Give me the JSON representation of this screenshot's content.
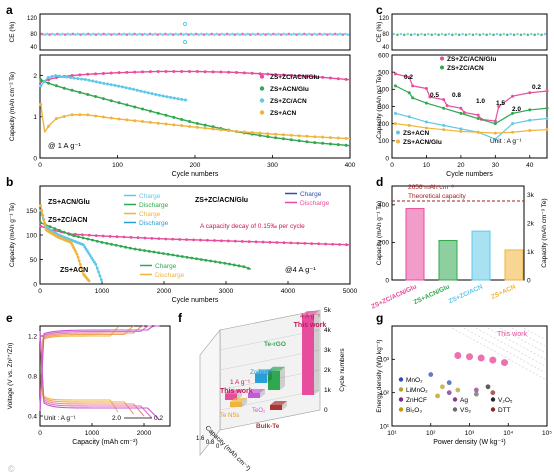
{
  "chart_data": [
    {
      "panel": "a",
      "type": "line",
      "ce_ylabel": "CE (%)",
      "ce_ticks": [
        "120",
        "80",
        "40"
      ],
      "ylabel": "Capacity (mAh cm⁻² Te)",
      "xlabel": "Cycle numbers",
      "xlim": [
        0,
        400
      ],
      "ylim": [
        0,
        2.5
      ],
      "x_ticks": [
        "0",
        "100",
        "200",
        "300",
        "400"
      ],
      "y_ticks": [
        "0",
        "1",
        "2"
      ],
      "condition": "@ 1 A g⁻¹",
      "series": [
        {
          "name": "ZS+ZC/ACN/Glu",
          "color": "#e84c9c",
          "x": [
            1,
            20,
            40,
            60,
            80,
            100,
            150,
            200,
            250,
            300,
            350,
            400
          ],
          "y": [
            1.85,
            1.95,
            2.0,
            2.03,
            2.05,
            2.07,
            2.1,
            2.1,
            2.08,
            2.03,
            1.98,
            1.9
          ]
        },
        {
          "name": "ZS+ACN/Glu",
          "color": "#2fa84f",
          "x": [
            1,
            10,
            30,
            50,
            80,
            120,
            160,
            200,
            250,
            300,
            350,
            400
          ],
          "y": [
            1.9,
            1.82,
            1.7,
            1.6,
            1.45,
            1.25,
            1.05,
            0.85,
            0.65,
            0.5,
            0.38,
            0.3
          ]
        },
        {
          "name": "ZS+ZC/ACN",
          "color": "#5fc8e8",
          "x": [
            1,
            10,
            20,
            40,
            60,
            80,
            100,
            120,
            140,
            160,
            180,
            190
          ],
          "y": [
            1.75,
            1.95,
            2.0,
            1.95,
            1.9,
            1.82,
            1.75,
            1.67,
            1.58,
            1.5,
            1.43,
            1.4
          ]
        },
        {
          "name": "ZS+ACN",
          "color": "#f0b43c",
          "x": [
            1,
            5,
            10,
            20,
            40,
            60,
            100,
            150,
            200,
            250,
            300,
            350,
            400
          ],
          "y": [
            1.3,
            0.6,
            0.75,
            0.95,
            1.05,
            1.05,
            0.95,
            0.85,
            0.75,
            0.65,
            0.58,
            0.52,
            0.47
          ]
        }
      ]
    },
    {
      "panel": "b",
      "type": "line",
      "ylabel": "Capacity (mAh g⁻¹ Te)",
      "xlabel": "Cycle numbers",
      "xlim": [
        0,
        5000
      ],
      "ylim": [
        0,
        200
      ],
      "x_ticks": [
        "0",
        "1000",
        "2000",
        "3000",
        "4000",
        "5000"
      ],
      "y_ticks": [
        "0",
        "50",
        "100",
        "150"
      ],
      "condition": "@4 A g⁻¹",
      "note": "A capacity decay of 0.15‰ per cycle",
      "labels": [
        "ZS+ACN/Glu",
        "ZS+ZC/ACN",
        "ZS+ACN",
        "ZS+ZC/ACN/Glu"
      ],
      "legend_left": [
        {
          "name": "Charge",
          "color": "#5fc8e8"
        },
        {
          "name": "Discharge",
          "color": "#2fa84f"
        },
        {
          "name": "Charge",
          "color": "#f0b43c"
        },
        {
          "name": "Discharge",
          "color": "#2a9fd6"
        }
      ],
      "legend_right": [
        {
          "name": "Charge",
          "color": "#2f4eb5"
        },
        {
          "name": "Discharge",
          "color": "#e84c9c"
        }
      ],
      "legend_mid": [
        {
          "name": "Charge",
          "color": "#2fa84f"
        },
        {
          "name": "Discharge",
          "color": "#f0b43c"
        }
      ],
      "series": [
        {
          "name": "ZS+ZC/ACN/Glu",
          "color": "#e84c9c",
          "x": [
            10,
            200,
            500,
            1000,
            2000,
            3000,
            4000,
            5000
          ],
          "y": [
            118,
            110,
            102,
            98,
            92,
            88,
            84,
            80
          ]
        },
        {
          "name": "ZS+ACN/Glu",
          "color": "#2fa84f",
          "x": [
            10,
            200,
            500,
            1000,
            1500,
            2000,
            2500,
            3000,
            3300,
            3400
          ],
          "y": [
            125,
            115,
            100,
            85,
            72,
            62,
            52,
            42,
            35,
            30
          ]
        },
        {
          "name": "ZS+ZC/ACN",
          "color": "#5fc8e8",
          "x": [
            10,
            100,
            300,
            500,
            700,
            900,
            1000
          ],
          "y": [
            150,
            115,
            100,
            90,
            80,
            40,
            5
          ]
        },
        {
          "name": "ZS+ACN",
          "color": "#f0b43c",
          "x": [
            10,
            100,
            300,
            500,
            600,
            700,
            800
          ],
          "y": [
            160,
            110,
            95,
            85,
            60,
            20,
            5
          ]
        }
      ]
    },
    {
      "panel": "c",
      "type": "line",
      "ce_ylabel": "CE (%)",
      "ce_ticks": [
        "120",
        "80",
        "40"
      ],
      "ylabel": "Capacity (mAh g⁻¹ Te)",
      "xlabel": "Cycle numbers",
      "xlim": [
        0,
        45
      ],
      "ylim": [
        0,
        600
      ],
      "x_ticks": [
        "0",
        "10",
        "20",
        "30",
        "40"
      ],
      "y_ticks": [
        "0",
        "100",
        "200",
        "300",
        "400",
        "500",
        "600"
      ],
      "unit": "Unit : A g⁻¹",
      "rate_labels": [
        "0.2",
        "0.5",
        "0.8",
        "1.0",
        "1.5",
        "2.0",
        "0.2"
      ],
      "series": [
        {
          "name": "ZS+ZC/ACN/Glu",
          "color": "#e84c9c",
          "x": [
            1,
            5,
            6,
            10,
            11,
            15,
            16,
            20,
            21,
            25,
            26,
            30,
            31,
            35,
            40,
            45
          ],
          "y": [
            490,
            470,
            420,
            405,
            355,
            340,
            305,
            290,
            265,
            250,
            225,
            215,
            300,
            360,
            380,
            390
          ]
        },
        {
          "name": "ZS+ZC/ACN",
          "color": "#2fa84f",
          "x": [
            1,
            5,
            6,
            10,
            15,
            20,
            25,
            30,
            35,
            40,
            45
          ],
          "y": [
            420,
            380,
            350,
            320,
            290,
            260,
            230,
            200,
            260,
            280,
            290
          ]
        },
        {
          "name": "ZS+ACN",
          "color": "#5fc8e8",
          "x": [
            1,
            5,
            10,
            15,
            20,
            25,
            30,
            35,
            40,
            45
          ],
          "y": [
            260,
            240,
            210,
            190,
            170,
            150,
            110,
            200,
            220,
            230
          ]
        },
        {
          "name": "ZS+ACN/Glu",
          "color": "#f0b43c",
          "x": [
            1,
            5,
            10,
            15,
            20,
            25,
            30,
            35,
            40,
            45
          ],
          "y": [
            200,
            190,
            175,
            165,
            155,
            150,
            145,
            150,
            160,
            165
          ]
        }
      ]
    },
    {
      "panel": "d",
      "type": "bar",
      "ylabel": "Capacity (mAh g⁻¹ Te)",
      "y2label": "Capacity (mAh cm⁻³ Te)",
      "ylim": [
        0,
        500
      ],
      "y_ticks": [
        "0",
        "200",
        "400"
      ],
      "y2_ticks": [
        "0",
        "1k",
        "2k",
        "3k"
      ],
      "annotation": "2656 mAh cm⁻³",
      "reference_line": {
        "label": "Theoretical capacity",
        "value": 420
      },
      "categories": [
        "ZS+ZC/ACN/Glu",
        "ZS+ACN/Glu",
        "ZS+ZC/ACN",
        "ZS+ACN"
      ],
      "colors": [
        "#e84c9c",
        "#2fa84f",
        "#5fc8e8",
        "#f0b43c"
      ],
      "values": [
        380,
        210,
        260,
        160
      ]
    },
    {
      "panel": "e",
      "type": "line",
      "ylabel": "Voltage (V vs. Zn²⁺/Zn)",
      "xlabel": "Capacity (mAh cm⁻²)",
      "xlim": [
        0,
        2500
      ],
      "ylim": [
        0.3,
        1.3
      ],
      "x_ticks": [
        "0",
        "1000",
        "2000"
      ],
      "y_ticks": [
        "0.4",
        "0.8",
        "1.2"
      ],
      "unit": "Unit : A g⁻¹",
      "rate_range": [
        "2.0",
        "0.2"
      ],
      "curve_endpoints": [
        1500,
        1800,
        2000,
        2150,
        2300
      ]
    },
    {
      "panel": "f",
      "type": "bar",
      "zlabel": "Cycle numbers",
      "xlabel": "Capacity (mAh cm⁻²)",
      "z_ticks": [
        "0",
        "1k",
        "2k",
        "3k",
        "4k",
        "5k"
      ],
      "x_ticks": [
        "1.6",
        "0.8",
        "0"
      ],
      "bars": [
        {
          "label": "This work",
          "condition": "4 A g⁻¹",
          "value": 5000,
          "color": "#e84c9c"
        },
        {
          "label": "This work",
          "condition": "1 A g⁻¹",
          "value": 400,
          "color": "#e84c9c"
        },
        {
          "label": "Te-rGO",
          "value": 1200,
          "color": "#2fa84f"
        },
        {
          "label": "ZnTe@C",
          "value": 600,
          "color": "#2a9fd6"
        },
        {
          "label": "Te NSs",
          "value": 300,
          "color": "#f0b43c"
        },
        {
          "label": "TeO₂",
          "value": 200,
          "color": "#c35ad6"
        },
        {
          "label": "Bulk-Te",
          "value": 150,
          "color": "#a33"
        }
      ]
    },
    {
      "panel": "g",
      "type": "scatter",
      "ylabel": "Energy density (Wh kg⁻¹)",
      "xlabel": "Power density (W kg⁻¹)",
      "x_scale": "log",
      "y_scale": "log",
      "xlim": [
        10,
        100000
      ],
      "ylim": [
        10,
        10000
      ],
      "x_ticks": [
        "10¹",
        "10²",
        "10³",
        "10⁴",
        "10⁵"
      ],
      "y_ticks": [
        "10¹",
        "10²",
        "10³"
      ],
      "label": "This work",
      "legend": [
        "MnO₂",
        "LiMnO₂",
        "ZnHCF",
        "Bi₂O₃",
        "Ag",
        "V₂O₅",
        "VS₂",
        "DTT"
      ],
      "series": [
        {
          "name": "This work",
          "color": "#e84c9c",
          "x": [
            500,
            1000,
            2000,
            4000,
            8000
          ],
          "y": [
            1300,
            1200,
            1100,
            950,
            800
          ]
        },
        {
          "name": "MnO₂",
          "color": "#2f4eb5",
          "x": [
            100,
            300
          ],
          "y": [
            350,
            200
          ]
        },
        {
          "name": "LiMnO₂",
          "color": "#b89f2c",
          "x": [
            200,
            500
          ],
          "y": [
            150,
            120
          ]
        },
        {
          "name": "ZnHCF",
          "color": "#7b2a8c",
          "x": [
            300
          ],
          "y": [
            100
          ]
        },
        {
          "name": "Bi₂O₃",
          "color": "#c39a00",
          "x": [
            150
          ],
          "y": [
            80
          ]
        },
        {
          "name": "Ag",
          "color": "#8a3c8c",
          "x": [
            1500
          ],
          "y": [
            120
          ]
        },
        {
          "name": "V₂O₅",
          "color": "#2a2a2a",
          "x": [
            3000
          ],
          "y": [
            150
          ]
        },
        {
          "name": "VS₂",
          "color": "#6b6b6b",
          "x": [
            1500
          ],
          "y": [
            90
          ]
        },
        {
          "name": "DTT",
          "color": "#8b2a2a",
          "x": [
            4000
          ],
          "y": [
            100
          ]
        }
      ]
    }
  ],
  "watermark": "©"
}
